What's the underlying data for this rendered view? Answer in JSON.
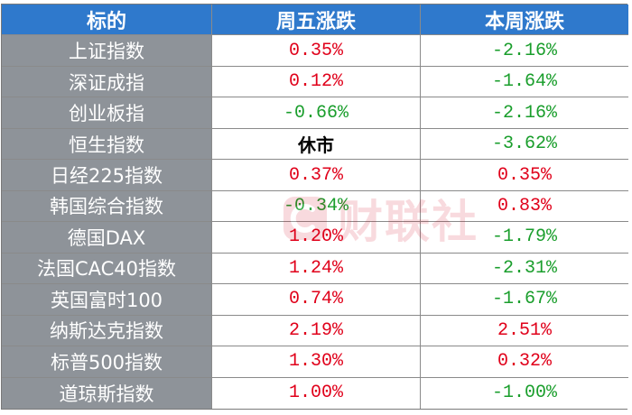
{
  "header": {
    "col1": "标的",
    "col2": "周五涨跌",
    "col3": "本周涨跌"
  },
  "colors": {
    "up": "#e0001a",
    "down": "#1a9e2c",
    "neutral": "#000000"
  },
  "rows": [
    {
      "name": "上证指数",
      "friday": "0.35%",
      "friday_dir": "up",
      "week": "-2.16%",
      "week_dir": "down"
    },
    {
      "name": "深证成指",
      "friday": "0.12%",
      "friday_dir": "up",
      "week": "-1.64%",
      "week_dir": "down"
    },
    {
      "name": "创业板指",
      "friday": "-0.66%",
      "friday_dir": "down",
      "week": "-2.16%",
      "week_dir": "down"
    },
    {
      "name": "恒生指数",
      "friday": "休市",
      "friday_dir": "neutral",
      "week": "-3.62%",
      "week_dir": "down"
    },
    {
      "name": "日经225指数",
      "friday": "0.37%",
      "friday_dir": "up",
      "week": "0.35%",
      "week_dir": "up"
    },
    {
      "name": "韩国综合指数",
      "friday": "-0.34%",
      "friday_dir": "down",
      "week": "0.83%",
      "week_dir": "up"
    },
    {
      "name": "德国DAX",
      "friday": "1.20%",
      "friday_dir": "up",
      "week": "-1.79%",
      "week_dir": "down"
    },
    {
      "name": "法国CAC40指数",
      "friday": "1.24%",
      "friday_dir": "up",
      "week": "-2.31%",
      "week_dir": "down"
    },
    {
      "name": "英国富时100",
      "friday": "0.74%",
      "friday_dir": "up",
      "week": "-1.67%",
      "week_dir": "down"
    },
    {
      "name": "纳斯达克指数",
      "friday": "2.19%",
      "friday_dir": "up",
      "week": "2.51%",
      "week_dir": "up"
    },
    {
      "name": "标普500指数",
      "friday": "1.30%",
      "friday_dir": "up",
      "week": "0.32%",
      "week_dir": "up"
    },
    {
      "name": "道琼斯指数",
      "friday": "1.00%",
      "friday_dir": "up",
      "week": "-1.00%",
      "week_dir": "down"
    }
  ],
  "watermark": {
    "text": "财联社",
    "icon": "cailianshe-logo-icon"
  }
}
